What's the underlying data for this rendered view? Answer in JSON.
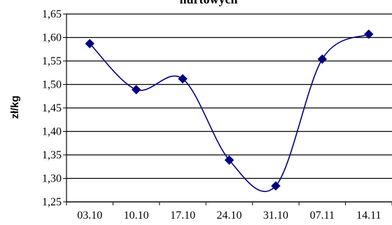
{
  "chart_data": {
    "type": "line",
    "title": "hurtowych",
    "xlabel": "",
    "ylabel": "zł/kg",
    "categories": [
      "03.10",
      "10.10",
      "17.10",
      "24.10",
      "31.10",
      "07.11",
      "14.11"
    ],
    "ylim": [
      1.25,
      1.65
    ],
    "yticks": [
      "1,65",
      "1,60",
      "1,55",
      "1,50",
      "1,45",
      "1,40",
      "1,35",
      "1,30",
      "1,25"
    ],
    "series": [
      {
        "values": [
          1.587,
          1.489,
          1.512,
          1.339,
          1.284,
          1.554,
          1.607
        ]
      }
    ],
    "grid": true,
    "smooth": true,
    "colors": {
      "line": "#00007f",
      "marker": "#000080",
      "grid": "#000000"
    }
  }
}
